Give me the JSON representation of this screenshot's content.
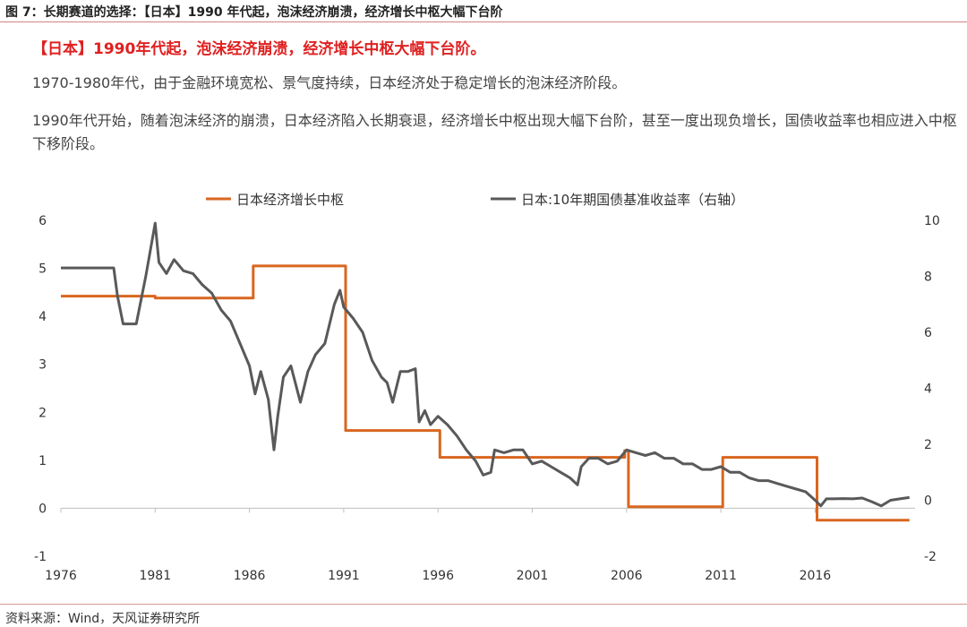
{
  "figure": {
    "title": "图 7：长期赛道的选择：【日本】1990 年代起，泡沫经济崩溃，经济增长中枢大幅下台阶",
    "headline": "【日本】1990年代起，泡沫经济崩溃，经济增长中枢大幅下台阶。",
    "paragraph1": "1970-1980年代，由于金融环境宽松、景气度持续，日本经济处于稳定增长的泡沫经济阶段。",
    "paragraph2": "1990年代开始，随着泡沫经济的崩溃，日本经济陷入长期衰退，经济增长中枢出现大幅下台阶，甚至一度出现负增长，国债收益率也相应进入中枢下移阶段。",
    "source": "资料来源：Wind，天风证券研究所"
  },
  "colors": {
    "growth_series": "#d9661f",
    "yield_series": "#595959",
    "axis": "#bfbfbf",
    "text": "#333333"
  },
  "chart_data": {
    "type": "line",
    "x_ticks": [
      "1976",
      "1981",
      "1986",
      "1991",
      "1996",
      "2001",
      "2006",
      "2011",
      "2016"
    ],
    "x_range": [
      1976,
      2021.3
    ],
    "y_left": {
      "range": [
        -1,
        6
      ],
      "ticks": [
        "-1",
        "0",
        "1",
        "2",
        "3",
        "4",
        "5",
        "6"
      ]
    },
    "y_right": {
      "range": [
        -2,
        10
      ],
      "ticks": [
        "-2",
        "0",
        "2",
        "4",
        "6",
        "8",
        "10"
      ]
    },
    "legend_position": "top-center",
    "series": [
      {
        "name": "日本经济增长中枢",
        "axis": "left",
        "step": true,
        "x": [
          1976,
          1981,
          1986,
          1986.2,
          1990.9,
          1991.1,
          1995.9,
          1996.1,
          2001,
          2005.9,
          2006.1,
          2010.9,
          2011.1,
          2015.9,
          2016.1,
          2021
        ],
        "y": [
          4.42,
          4.38,
          4.38,
          5.05,
          5.05,
          1.62,
          1.62,
          1.06,
          1.06,
          1.2,
          0.03,
          0.03,
          1.06,
          1.06,
          -0.25,
          -0.25
        ]
      },
      {
        "name": "日本:10年期国债基准收益率（右轴）",
        "axis": "right",
        "x": [
          1976,
          1978.8,
          1979,
          1979.3,
          1980,
          1980.5,
          1981,
          1981.2,
          1981.6,
          1982,
          1982.5,
          1983,
          1983.5,
          1984,
          1984.5,
          1985,
          1985.5,
          1986,
          1986.3,
          1986.6,
          1987,
          1987.3,
          1987.5,
          1987.8,
          1988.2,
          1988.7,
          1989.1,
          1989.5,
          1990,
          1990.5,
          1990.8,
          1991,
          1991.5,
          1992,
          1992.5,
          1993,
          1993.3,
          1993.6,
          1994,
          1994.4,
          1994.8,
          1995,
          1995.3,
          1995.6,
          1996,
          1996.5,
          1997,
          1997.5,
          1998,
          1998.4,
          1998.8,
          1999,
          1999.5,
          2000,
          2000.5,
          2001,
          2001.5,
          2002,
          2002.5,
          2003,
          2003.4,
          2003.6,
          2004,
          2004.5,
          2005,
          2005.5,
          2006,
          2006.5,
          2007,
          2007.5,
          2008,
          2008.5,
          2009,
          2009.5,
          2010,
          2010.5,
          2011,
          2011.5,
          2012,
          2012.5,
          2013,
          2013.5,
          2014,
          2014.5,
          2015,
          2015.5,
          2016,
          2016.3,
          2016.6,
          2017,
          2017.5,
          2018,
          2018.5,
          2019,
          2019.5,
          2020,
          2020.5,
          2021
        ],
        "y": [
          8.3,
          8.3,
          7.3,
          6.3,
          6.3,
          8.0,
          9.9,
          8.5,
          8.1,
          8.6,
          8.2,
          8.1,
          7.7,
          7.4,
          6.8,
          6.4,
          5.6,
          4.8,
          3.8,
          4.6,
          3.6,
          1.8,
          3.0,
          4.4,
          4.8,
          3.5,
          4.6,
          5.2,
          5.6,
          7.0,
          7.5,
          6.9,
          6.5,
          6.0,
          5.0,
          4.4,
          4.2,
          3.5,
          4.6,
          4.6,
          4.7,
          2.8,
          3.2,
          2.7,
          3.0,
          2.7,
          2.3,
          1.8,
          1.4,
          0.9,
          1.0,
          1.8,
          1.7,
          1.8,
          1.8,
          1.3,
          1.4,
          1.2,
          1.0,
          0.8,
          0.55,
          1.2,
          1.5,
          1.5,
          1.3,
          1.4,
          1.8,
          1.7,
          1.6,
          1.7,
          1.5,
          1.5,
          1.3,
          1.3,
          1.1,
          1.1,
          1.2,
          1.0,
          1.0,
          0.8,
          0.7,
          0.7,
          0.6,
          0.5,
          0.4,
          0.3,
          0.0,
          -0.2,
          0.05,
          0.05,
          0.06,
          0.05,
          0.08,
          -0.05,
          -0.2,
          0.0,
          0.05,
          0.1
        ]
      }
    ]
  }
}
